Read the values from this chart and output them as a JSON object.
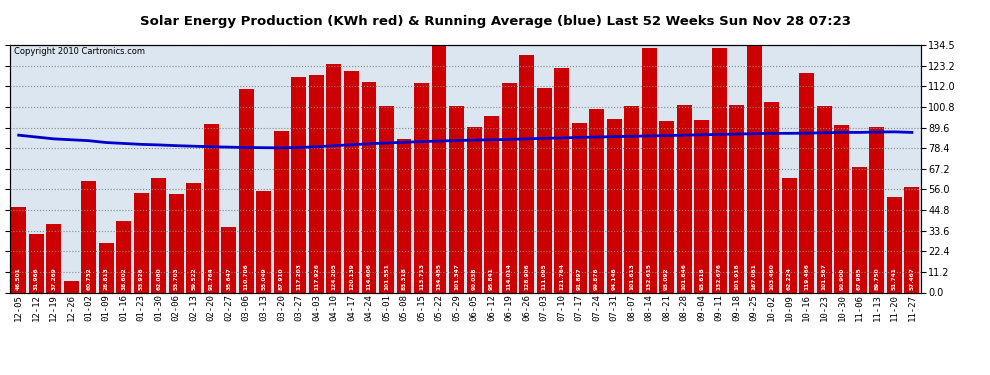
{
  "title": "Solar Energy Production (KWh red) & Running Average (blue) Last 52 Weeks Sun Nov 28 07:23",
  "copyright": "Copyright 2010 Cartronics.com",
  "bar_color": "#cc0000",
  "line_color": "#0000cc",
  "background_color": "#ffffff",
  "plot_bg_color": "#dce6f0",
  "grid_color": "#aaaaaa",
  "ylim": [
    0.0,
    134.5
  ],
  "yticks": [
    0.0,
    11.2,
    22.4,
    33.6,
    44.8,
    56.0,
    67.2,
    78.4,
    89.6,
    100.8,
    112.0,
    123.2,
    134.5
  ],
  "categories": [
    "12-05",
    "12-12",
    "12-19",
    "12-26",
    "01-02",
    "01-09",
    "01-16",
    "01-23",
    "01-30",
    "02-06",
    "02-13",
    "02-20",
    "02-27",
    "03-06",
    "03-13",
    "03-20",
    "03-27",
    "04-03",
    "04-10",
    "04-17",
    "04-24",
    "05-01",
    "05-08",
    "05-15",
    "05-22",
    "05-29",
    "06-05",
    "06-12",
    "06-19",
    "06-26",
    "07-03",
    "07-10",
    "07-17",
    "07-24",
    "07-31",
    "08-07",
    "08-14",
    "08-21",
    "08-28",
    "09-04",
    "09-11",
    "09-18",
    "09-25",
    "10-02",
    "10-09",
    "10-16",
    "10-23",
    "10-30",
    "11-06",
    "11-13",
    "11-20",
    "11-27"
  ],
  "values": [
    46.501,
    31.966,
    37.269,
    6.079,
    60.732,
    26.813,
    38.602,
    53.926,
    62.08,
    53.703,
    59.522,
    91.764,
    35.647,
    110.706,
    55.049,
    87.91,
    117.203,
    117.926,
    124.205,
    120.139,
    114.606,
    101.551,
    83.318,
    113.713,
    134.455,
    101.347,
    90.038,
    95.841,
    114.014,
    128.906,
    111.095,
    121.764,
    91.897,
    99.876,
    94.146,
    101.613,
    132.615,
    93.092,
    101.646,
    93.618,
    132.676,
    101.918,
    167.081,
    103.46,
    62.224,
    119.466,
    101.567,
    90.9,
    67.985,
    89.75,
    51.741,
    57.467
  ],
  "running_avg": [
    85.5,
    84.5,
    83.5,
    83.0,
    82.5,
    81.5,
    81.0,
    80.5,
    80.2,
    79.8,
    79.5,
    79.2,
    79.0,
    78.8,
    78.7,
    78.6,
    78.8,
    79.2,
    79.8,
    80.3,
    80.8,
    81.3,
    81.6,
    82.0,
    82.3,
    82.6,
    82.8,
    83.0,
    83.2,
    83.5,
    83.8,
    84.0,
    84.3,
    84.5,
    84.7,
    84.9,
    85.1,
    85.3,
    85.5,
    85.7,
    85.9,
    86.1,
    86.3,
    86.5,
    86.5,
    86.6,
    86.8,
    87.0,
    87.0,
    87.2,
    87.3,
    87.0
  ]
}
